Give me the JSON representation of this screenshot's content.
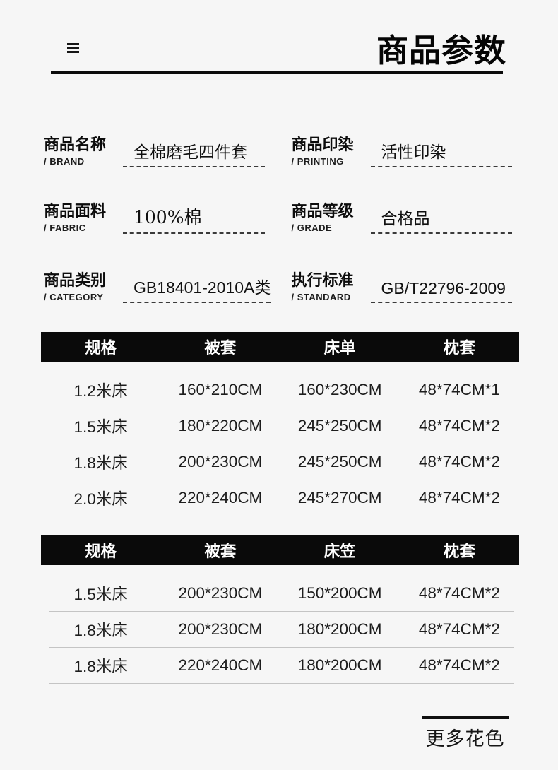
{
  "header": {
    "title": "商品参数"
  },
  "icons": {
    "menu_icon": "hamburger-menu"
  },
  "fields": [
    {
      "label_cn": "商品名称",
      "label_en": "/ BRAND",
      "value": "全棉磨毛四件套"
    },
    {
      "label_cn": "商品印染",
      "label_en": "/ PRINTING",
      "value": "活性印染"
    },
    {
      "label_cn": "商品面料",
      "label_en": "/ FABRIC",
      "value": "100%棉"
    },
    {
      "label_cn": "商品等级",
      "label_en": "/ GRADE",
      "value": "合格品"
    },
    {
      "label_cn": "商品类别",
      "label_en": "/ CATEGORY",
      "value": "GB18401-2010A类"
    },
    {
      "label_cn": "执行标准",
      "label_en": "/ STANDARD",
      "value": "GB/T22796-2009"
    }
  ],
  "tables": [
    {
      "headers": [
        "规格",
        "被套",
        "床单",
        "枕套"
      ],
      "rows": [
        [
          "1.2米床",
          "160*210CM",
          "160*230CM",
          "48*74CM*1"
        ],
        [
          "1.5米床",
          "180*220CM",
          "245*250CM",
          "48*74CM*2"
        ],
        [
          "1.8米床",
          "200*230CM",
          "245*250CM",
          "48*74CM*2"
        ],
        [
          "2.0米床",
          "220*240CM",
          "245*270CM",
          "48*74CM*2"
        ]
      ]
    },
    {
      "headers": [
        "规格",
        "被套",
        "床笠",
        "枕套"
      ],
      "rows": [
        [
          "1.5米床",
          "200*230CM",
          "150*200CM",
          "48*74CM*2"
        ],
        [
          "1.8米床",
          "200*230CM",
          "180*200CM",
          "48*74CM*2"
        ],
        [
          "1.8米床",
          "220*240CM",
          "180*200CM",
          "48*74CM*2"
        ]
      ]
    }
  ],
  "footer": {
    "more_colors_label": "更多花色"
  },
  "colors": {
    "background": "#f6f6f6",
    "ink": "#0b0b0b",
    "table_header_bg": "#0a0a0a",
    "table_header_text": "#ffffff",
    "divider": "#c4c4c4"
  }
}
